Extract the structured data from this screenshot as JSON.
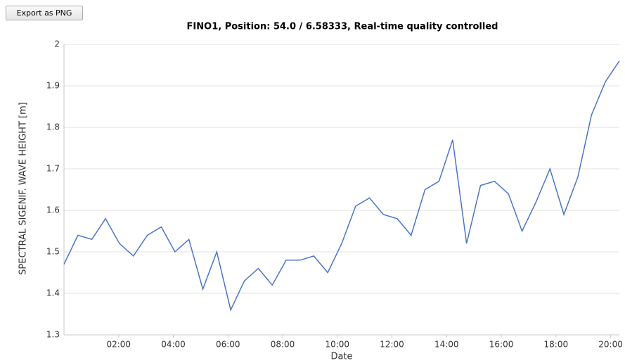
{
  "button": "Export as PNG",
  "chart_data": {
    "type": "line",
    "title": "FINO1, Position: 54.0 / 6.58333, Real-time quality controlled",
    "x_label": "Date",
    "y_label": "SPECTRAL SIGENIF. WAVE HEIGHT [m]",
    "x": [
      0,
      0.51,
      1.02,
      1.52,
      2.03,
      2.54,
      3.05,
      3.56,
      4.06,
      4.57,
      5.08,
      5.59,
      6.1,
      6.6,
      7.11,
      7.62,
      8.13,
      8.64,
      9.14,
      9.65,
      10.16,
      10.67,
      11.18,
      11.68,
      12.19,
      12.7,
      13.21,
      13.72,
      14.22,
      14.73,
      15.24,
      15.75,
      16.26,
      16.76,
      17.27,
      17.78,
      18.29,
      18.8,
      19.3,
      19.81,
      20.32
    ],
    "series": [
      {
        "name": "SPECTRAL SIGENIF. WAVE HEIGHT",
        "color": "#4a74c9",
        "values": [
          1.47,
          1.54,
          1.53,
          1.58,
          1.52,
          1.49,
          1.54,
          1.56,
          1.5,
          1.53,
          1.41,
          1.5,
          1.36,
          1.43,
          1.46,
          1.42,
          1.48,
          1.48,
          1.49,
          1.45,
          1.52,
          1.61,
          1.63,
          1.59,
          1.58,
          1.54,
          1.65,
          1.67,
          1.77,
          1.52,
          1.66,
          1.67,
          1.64,
          1.55,
          1.62,
          1.7,
          1.59,
          1.68,
          1.83,
          1.91,
          1.96
        ]
      }
    ],
    "xlim": [
      0,
      20.32
    ],
    "xticks": [
      {
        "value": 2,
        "label": "02:00"
      },
      {
        "value": 4,
        "label": "04:00"
      },
      {
        "value": 6,
        "label": "06:00"
      },
      {
        "value": 8,
        "label": "08:00"
      },
      {
        "value": 10,
        "label": "10:00"
      },
      {
        "value": 12,
        "label": "12:00"
      },
      {
        "value": 14,
        "label": "14:00"
      },
      {
        "value": 16,
        "label": "16:00"
      },
      {
        "value": 18,
        "label": "18:00"
      },
      {
        "value": 20,
        "label": "20:00"
      }
    ],
    "ylim": [
      1.3,
      2
    ],
    "yticks": [
      1.3,
      1.4,
      1.5,
      1.6,
      1.7,
      1.8,
      1.9,
      2
    ],
    "grid": true
  }
}
